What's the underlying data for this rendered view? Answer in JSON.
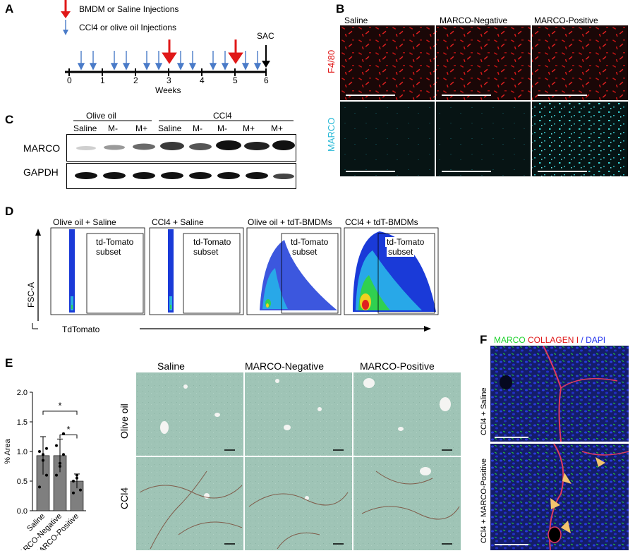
{
  "panel_letters": {
    "A": "A",
    "B": "B",
    "C": "C",
    "D": "D",
    "E": "E",
    "F": "F"
  },
  "panelA": {
    "legend_bmdm": "BMDM or Saline Injections",
    "legend_ccl4": "CCl4 or olive oil Injections",
    "sac": "SAC",
    "ticks": [
      "0",
      "1",
      "2",
      "3",
      "4",
      "5",
      "6"
    ],
    "xlabel": "Weeks"
  },
  "panelB": {
    "columns": [
      "Saline",
      "MARCO-Negative",
      "MARCO-Positive"
    ],
    "row_labels": [
      "F4/80",
      "MARCO"
    ]
  },
  "panelC": {
    "group1": "Olive oil",
    "group2": "CCl4",
    "lanes": [
      "Saline",
      "M-",
      "M+",
      "Saline",
      "M-",
      "M-",
      "M+",
      "M+"
    ],
    "rows": [
      "MARCO",
      "GAPDH"
    ]
  },
  "panelD": {
    "titles": [
      "Olive oil + Saline",
      "CCl4 + Saline",
      "Olive oil + tdT-BMDMs",
      "CCl4 + tdT-BMDMs"
    ],
    "gate_label_1": "td-Tomato",
    "gate_label_2": "subset",
    "ylabel": "FSC-A",
    "xlabel": "TdTomato"
  },
  "panelE": {
    "columns": [
      "Saline",
      "MARCO-Negative",
      "MARCO-Positive"
    ],
    "row_labels": [
      "Olive oil",
      "CCl4"
    ],
    "significance": [
      "*",
      "*"
    ]
  },
  "panelF": {
    "legend_marco": "MARCO",
    "legend_collagen": "COLLAGEN I",
    "legend_dapi": "DAPI",
    "row_labels": [
      "CCl4 + Saline",
      "CCl4 + MARCO-Positive"
    ]
  },
  "chart_data": {
    "type": "bar",
    "categories": [
      "Saline",
      "MARCO-Negative",
      "MARCO-Positive"
    ],
    "values": [
      0.93,
      0.93,
      0.5
    ],
    "error": [
      0.32,
      0.28,
      0.12
    ],
    "points": [
      [
        1.0,
        0.85,
        0.6,
        0.4,
        0.95,
        1.05
      ],
      [
        1.1,
        0.75,
        0.95,
        0.6,
        0.8,
        1.3
      ],
      [
        0.5,
        0.55,
        0.35,
        0.3,
        0.6
      ]
    ],
    "ylabel": "% Area",
    "ylim": [
      0,
      2.0
    ],
    "yticks": [
      "0.0",
      "0.5",
      "1.0",
      "1.5",
      "2.0"
    ],
    "bar_color": "#7f7f7f"
  },
  "colors": {
    "red_arrow": "#e01818",
    "blue_arrow": "#4a7bc8",
    "f480": "#e01818",
    "marco": "#27b8d6",
    "green": "#1fd22e",
    "dapi": "#2233ee"
  }
}
